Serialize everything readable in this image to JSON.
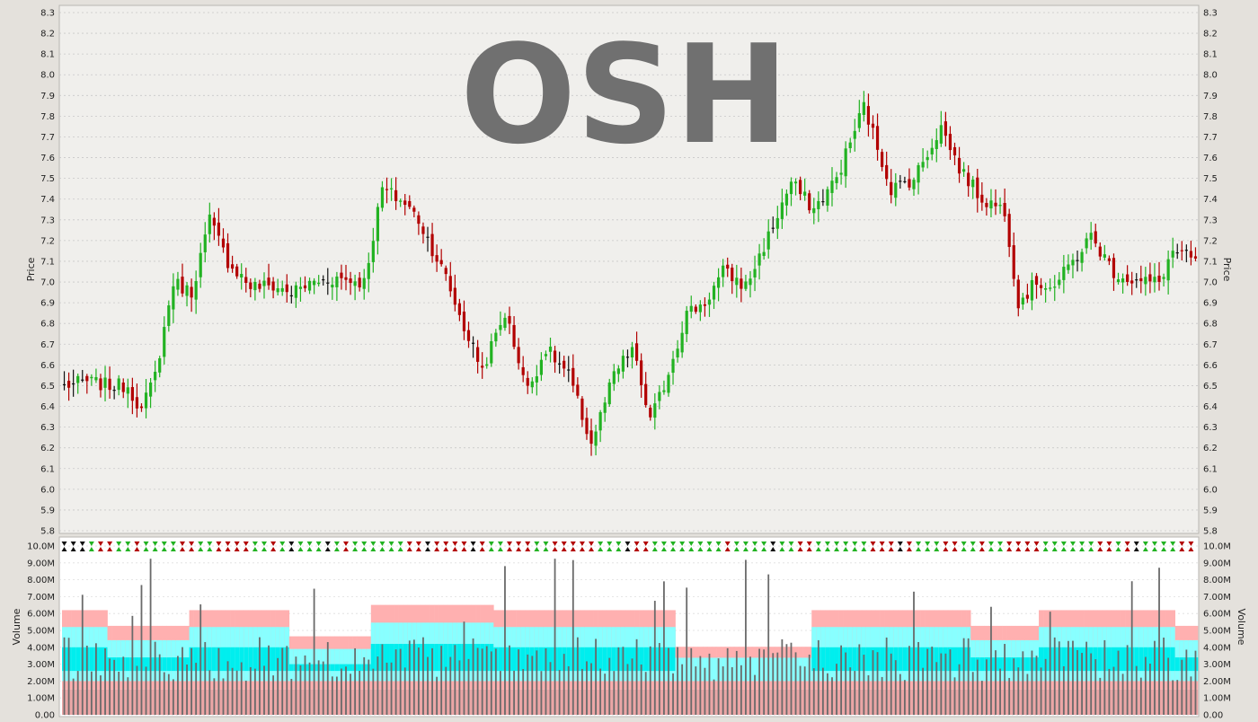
{
  "chart_data": [
    {
      "type": "ohlc",
      "watermark": "OSH",
      "ylabel": "Price",
      "ylim": [
        5.8,
        8.3
      ],
      "y_ticks": [
        "5.8",
        "5.9",
        "6.0",
        "6.1",
        "6.2",
        "6.3",
        "6.4",
        "6.5",
        "6.6",
        "6.7",
        "6.8",
        "6.9",
        "7.0",
        "7.1",
        "7.2",
        "7.3",
        "7.4",
        "7.5",
        "7.6",
        "7.7",
        "7.8",
        "7.9",
        "8.0",
        "8.1",
        "8.2",
        "8.3"
      ],
      "grid": true,
      "n_bars": 250,
      "price_path": [
        [
          0,
          6.5
        ],
        [
          5,
          6.52
        ],
        [
          10,
          6.5
        ],
        [
          14,
          6.5
        ],
        [
          17,
          6.38
        ],
        [
          20,
          6.55
        ],
        [
          24,
          7.0
        ],
        [
          28,
          6.95
        ],
        [
          32,
          7.3
        ],
        [
          36,
          7.1
        ],
        [
          41,
          6.98
        ],
        [
          46,
          6.98
        ],
        [
          50,
          6.95
        ],
        [
          55,
          7.0
        ],
        [
          60,
          7.02
        ],
        [
          66,
          7.0
        ],
        [
          70,
          7.45
        ],
        [
          75,
          7.38
        ],
        [
          78,
          7.3
        ],
        [
          84,
          7.02
        ],
        [
          88,
          6.78
        ],
        [
          92,
          6.58
        ],
        [
          97,
          6.85
        ],
        [
          102,
          6.48
        ],
        [
          106,
          6.68
        ],
        [
          111,
          6.55
        ],
        [
          116,
          6.22
        ],
        [
          121,
          6.55
        ],
        [
          125,
          6.68
        ],
        [
          129,
          6.33
        ],
        [
          132,
          6.5
        ],
        [
          137,
          6.85
        ],
        [
          141,
          6.9
        ],
        [
          145,
          7.05
        ],
        [
          150,
          6.98
        ],
        [
          155,
          7.22
        ],
        [
          160,
          7.48
        ],
        [
          165,
          7.35
        ],
        [
          170,
          7.5
        ],
        [
          176,
          7.85
        ],
        [
          182,
          7.45
        ],
        [
          187,
          7.5
        ],
        [
          193,
          7.75
        ],
        [
          197,
          7.55
        ],
        [
          202,
          7.4
        ],
        [
          207,
          7.35
        ],
        [
          210,
          6.9
        ],
        [
          214,
          7.0
        ],
        [
          218,
          6.98
        ],
        [
          222,
          7.1
        ],
        [
          226,
          7.22
        ],
        [
          231,
          7.05
        ],
        [
          236,
          7.0
        ],
        [
          241,
          7.0
        ],
        [
          244,
          7.15
        ],
        [
          249,
          7.1
        ]
      ]
    },
    {
      "type": "bar",
      "ylabel": "Volume",
      "ylim": [
        0,
        10000000
      ],
      "y_ticks": [
        "0.00",
        "1.00M",
        "2.00M",
        "3.00M",
        "4.00M",
        "5.00M",
        "6.00M",
        "7.00M",
        "8.00M",
        "9.00M",
        "10.0M"
      ]
    }
  ],
  "colors": {
    "up": "#22b222",
    "down": "#b20000",
    "neutral": "#111111",
    "volume_bar": "#6a6a6a",
    "band_outer": "#ffb0b0",
    "band_mid": "#88ffff",
    "band_inner": "#00eeee",
    "band_base": "#eba6a6",
    "grid": "#c8c8c8",
    "plot_bg": "#f0efec",
    "volume_bg": "#ffffff",
    "watermark": "#707070"
  }
}
